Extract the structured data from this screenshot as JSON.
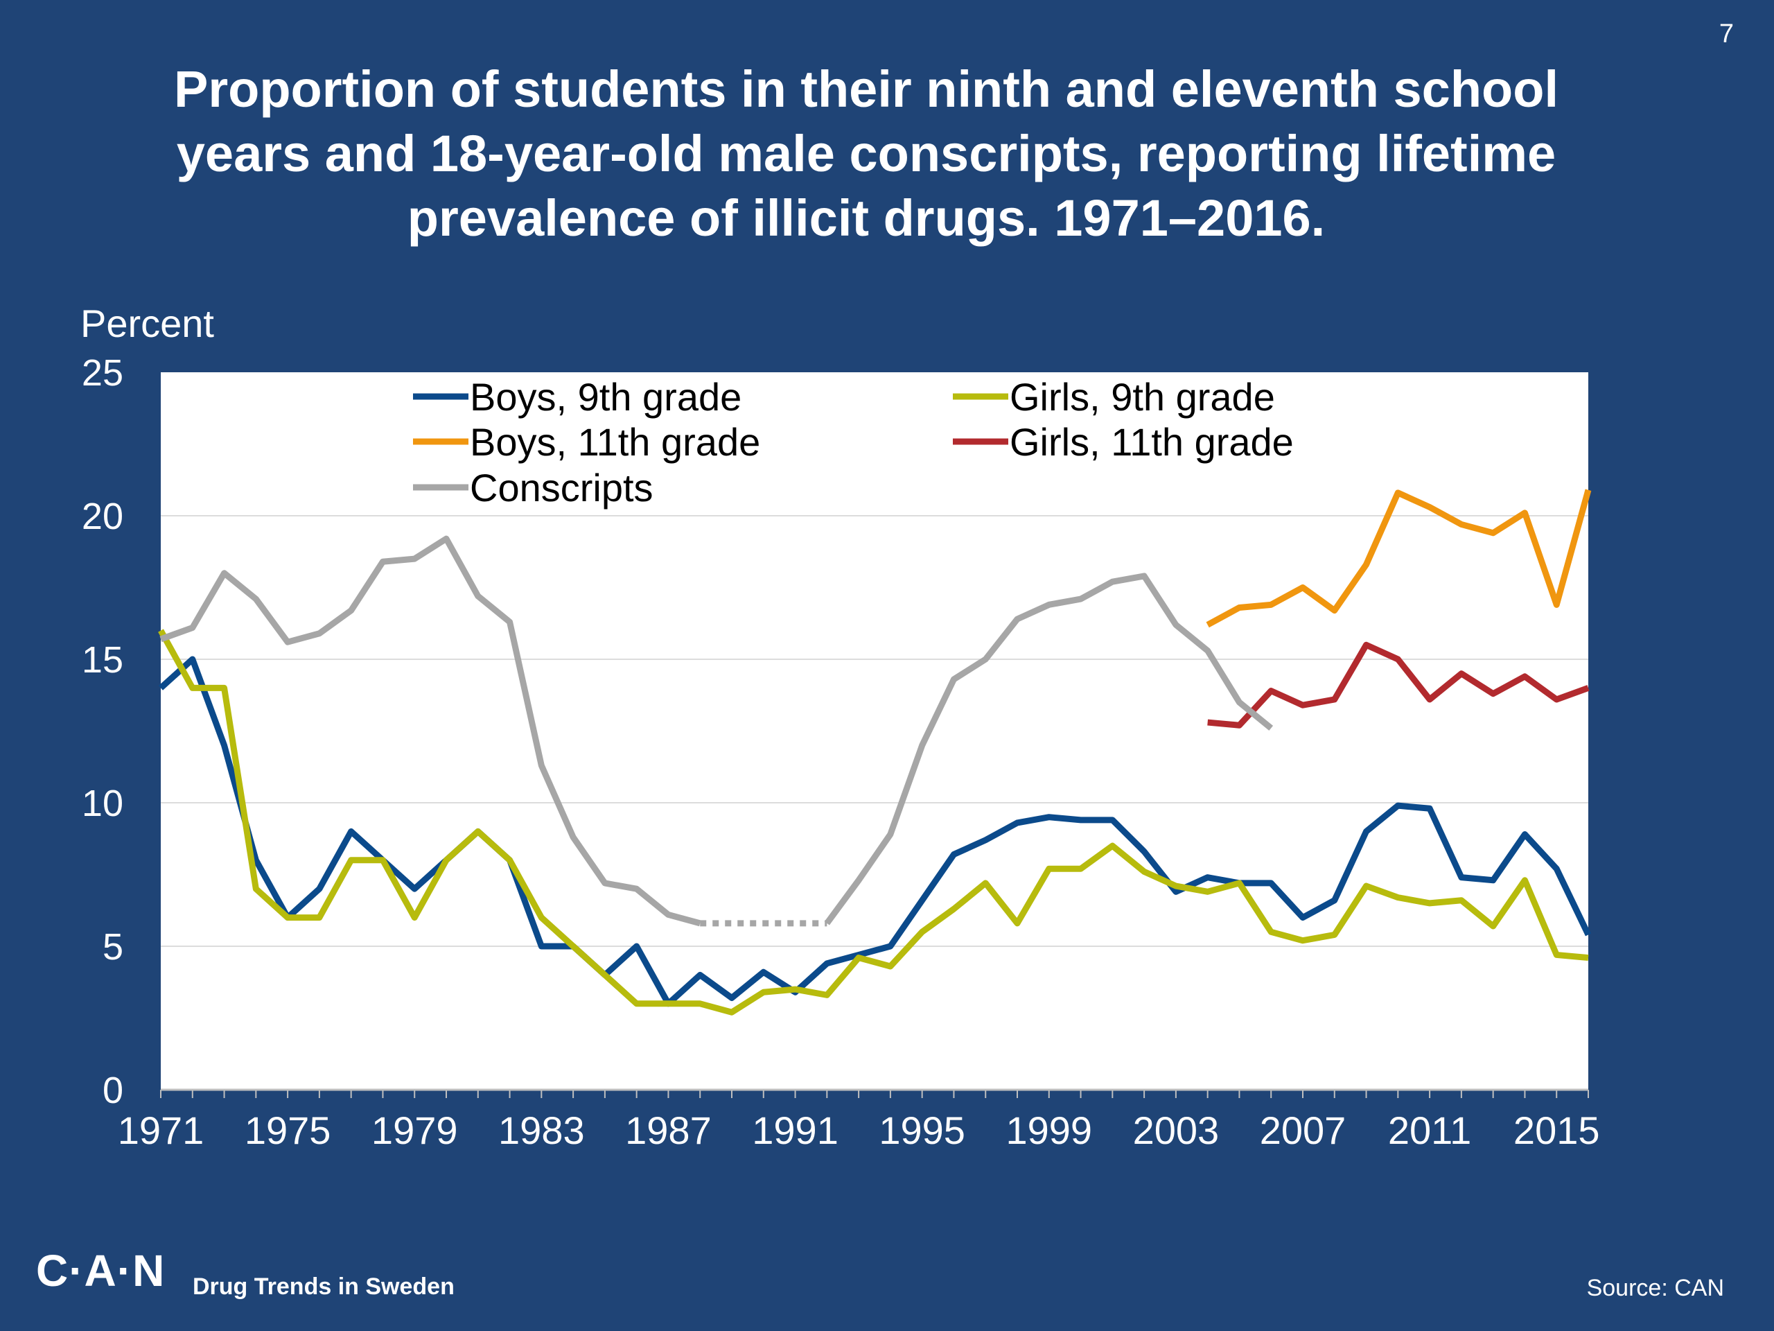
{
  "slide_number": "7",
  "title_lines": [
    "Proportion of students in their ninth and eleventh school",
    "years and 18-year-old male conscripts, reporting lifetime",
    "prevalence of illicit drugs. 1971–2016."
  ],
  "footer": {
    "logo": "C·A·N",
    "tagline": "Drug Trends in Sweden",
    "source": "Source: CAN"
  },
  "chart_data": {
    "type": "line",
    "ylabel": "Percent",
    "ylim": [
      0,
      25
    ],
    "yticks": [
      "0",
      "5",
      "10",
      "15",
      "20",
      "25"
    ],
    "xlim": [
      1971,
      2016
    ],
    "xticks": [
      "1971",
      "1975",
      "1979",
      "1983",
      "1987",
      "1991",
      "1995",
      "1999",
      "2003",
      "2007",
      "2011",
      "2015"
    ],
    "grid": true,
    "legend_position": "top",
    "series": [
      {
        "name": "Boys, 9th grade",
        "color": "#0b4a8b",
        "x": [
          1971,
          1972,
          1973,
          1974,
          1975,
          1976,
          1977,
          1978,
          1979,
          1980,
          1981,
          1982,
          1983,
          1984,
          1985,
          1986,
          1987,
          1988,
          1989,
          1990,
          1991,
          1992,
          1993,
          1994,
          1995,
          1996,
          1997,
          1998,
          1999,
          2000,
          2001,
          2002,
          2003,
          2004,
          2005,
          2006,
          2007,
          2008,
          2009,
          2010,
          2011,
          2012,
          2013,
          2014,
          2015,
          2016
        ],
        "y": [
          14,
          15,
          12,
          8,
          6,
          7,
          9,
          8,
          7,
          8,
          9,
          8,
          5,
          5,
          4,
          5,
          3,
          4,
          3.2,
          4.1,
          3.4,
          4.4,
          4.7,
          5,
          6.6,
          8.2,
          8.7,
          9.3,
          9.5,
          9.4,
          9.4,
          8.3,
          6.9,
          7.4,
          7.2,
          7.2,
          6,
          6.6,
          9,
          9.9,
          9.8,
          7.4,
          7.3,
          8.9,
          7.7,
          5.4
        ]
      },
      {
        "name": "Girls, 9th grade",
        "color": "#b7bb0d",
        "x": [
          1971,
          1972,
          1973,
          1974,
          1975,
          1976,
          1977,
          1978,
          1979,
          1980,
          1981,
          1982,
          1983,
          1984,
          1985,
          1986,
          1987,
          1988,
          1989,
          1990,
          1991,
          1992,
          1993,
          1994,
          1995,
          1996,
          1997,
          1998,
          1999,
          2000,
          2001,
          2002,
          2003,
          2004,
          2005,
          2006,
          2007,
          2008,
          2009,
          2010,
          2011,
          2012,
          2013,
          2014,
          2015,
          2016
        ],
        "y": [
          16,
          14,
          14,
          7,
          6,
          6,
          8,
          8,
          6,
          8,
          9,
          8,
          6,
          5,
          4,
          3,
          3,
          3,
          2.7,
          3.4,
          3.5,
          3.3,
          4.6,
          4.3,
          5.5,
          6.3,
          7.2,
          5.8,
          7.7,
          7.7,
          8.5,
          7.6,
          7.1,
          6.9,
          7.2,
          5.5,
          5.2,
          5.4,
          7.1,
          6.7,
          6.5,
          6.6,
          5.7,
          7.3,
          4.7,
          4.6
        ]
      },
      {
        "name": "Boys, 11th grade",
        "color": "#f0960f",
        "x": [
          2004,
          2005,
          2006,
          2007,
          2008,
          2009,
          2010,
          2011,
          2012,
          2013,
          2014,
          2015,
          2016
        ],
        "y": [
          16.2,
          16.8,
          16.9,
          17.5,
          16.7,
          18.3,
          20.8,
          20.3,
          19.7,
          19.4,
          20.1,
          16.9,
          20.9
        ]
      },
      {
        "name": "Girls, 11th grade",
        "color": "#b22a2e",
        "x": [
          2004,
          2005,
          2006,
          2007,
          2008,
          2009,
          2010,
          2011,
          2012,
          2013,
          2014,
          2015,
          2016
        ],
        "y": [
          12.8,
          12.7,
          13.9,
          13.4,
          13.6,
          15.5,
          15,
          13.6,
          14.5,
          13.8,
          14.4,
          13.6,
          14
        ]
      },
      {
        "name": "Conscripts",
        "color": "#a6a6a6",
        "x": [
          1971,
          1972,
          1973,
          1974,
          1975,
          1976,
          1977,
          1978,
          1979,
          1980,
          1981,
          1982,
          1983,
          1984,
          1985,
          1986,
          1987,
          1988,
          1989,
          1990,
          1991,
          1992,
          1993,
          1994,
          1995,
          1996,
          1997,
          1998,
          1999,
          2000,
          2001,
          2002,
          2003,
          2004,
          2005,
          2006
        ],
        "y": [
          15.7,
          16.1,
          18,
          17.1,
          15.6,
          15.9,
          16.7,
          18.4,
          18.5,
          19.2,
          17.2,
          16.3,
          11.3,
          8.8,
          7.2,
          7,
          6.1,
          5.8,
          null,
          null,
          null,
          5.8,
          7.3,
          8.9,
          12,
          14.3,
          15,
          16.4,
          16.9,
          17.1,
          17.7,
          17.9,
          16.2,
          15.3,
          13.5,
          12.6
        ],
        "gap": {
          "from_x": 1988,
          "to_x": 1992,
          "style": "dotted"
        }
      }
    ]
  }
}
